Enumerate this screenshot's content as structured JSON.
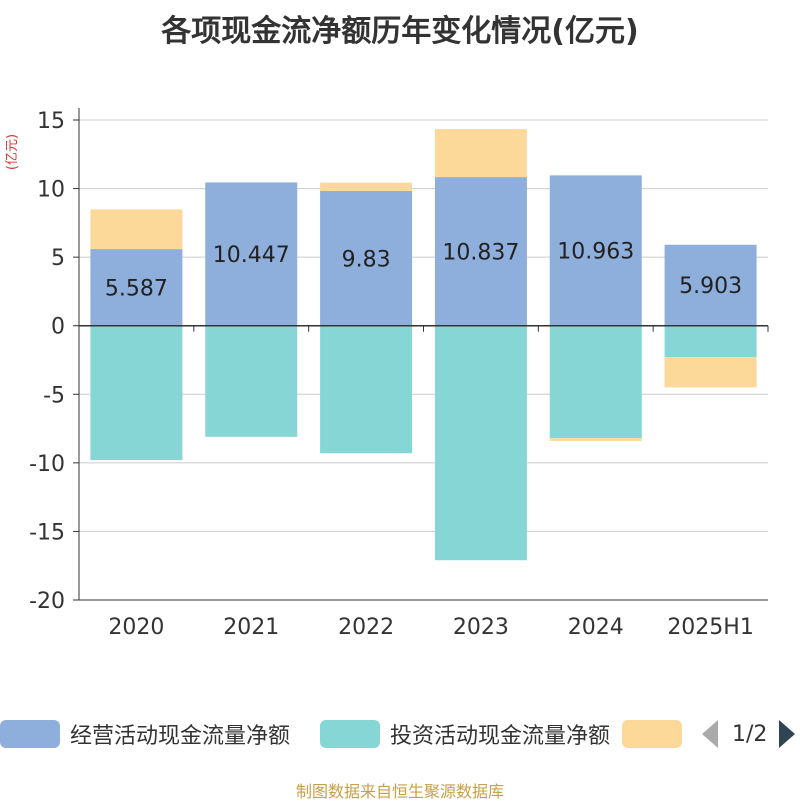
{
  "title": "各项现金流净额历年变化情况(亿元)",
  "unit_label": "(亿元)",
  "source": "制图数据来自恒生聚源数据库",
  "legend": {
    "items": [
      {
        "label": "经营活动现金流量净额",
        "color": "#8eaedb"
      },
      {
        "label": "投资活动现金流量净额",
        "color": "#86d6d6"
      },
      {
        "label": "",
        "color": "#fdd999"
      }
    ],
    "page": "1/2"
  },
  "chart_data": {
    "type": "bar",
    "stacked": true,
    "categories": [
      "2020",
      "2021",
      "2022",
      "2023",
      "2024",
      "2025H1"
    ],
    "ylim": [
      -20,
      15
    ],
    "yticks": [
      15,
      10,
      5,
      0,
      -5,
      -10,
      -15,
      -20
    ],
    "grid": true,
    "series": [
      {
        "name": "经营活动现金流量净额",
        "color": "#8eaedb",
        "values": [
          5.587,
          10.447,
          9.83,
          10.837,
          10.963,
          5.903
        ],
        "labels": [
          "5.587",
          "10.447",
          "9.83",
          "10.837",
          "10.963",
          "5.903"
        ]
      },
      {
        "name": "投资活动现金流量净额",
        "color": "#86d6d6",
        "values": [
          -9.8,
          -8.1,
          -9.3,
          -17.1,
          -8.2,
          -2.3
        ]
      },
      {
        "color": "#fdd999",
        "values": [
          2.9,
          0.0,
          0.6,
          3.5,
          -0.2,
          -2.2
        ]
      }
    ]
  }
}
